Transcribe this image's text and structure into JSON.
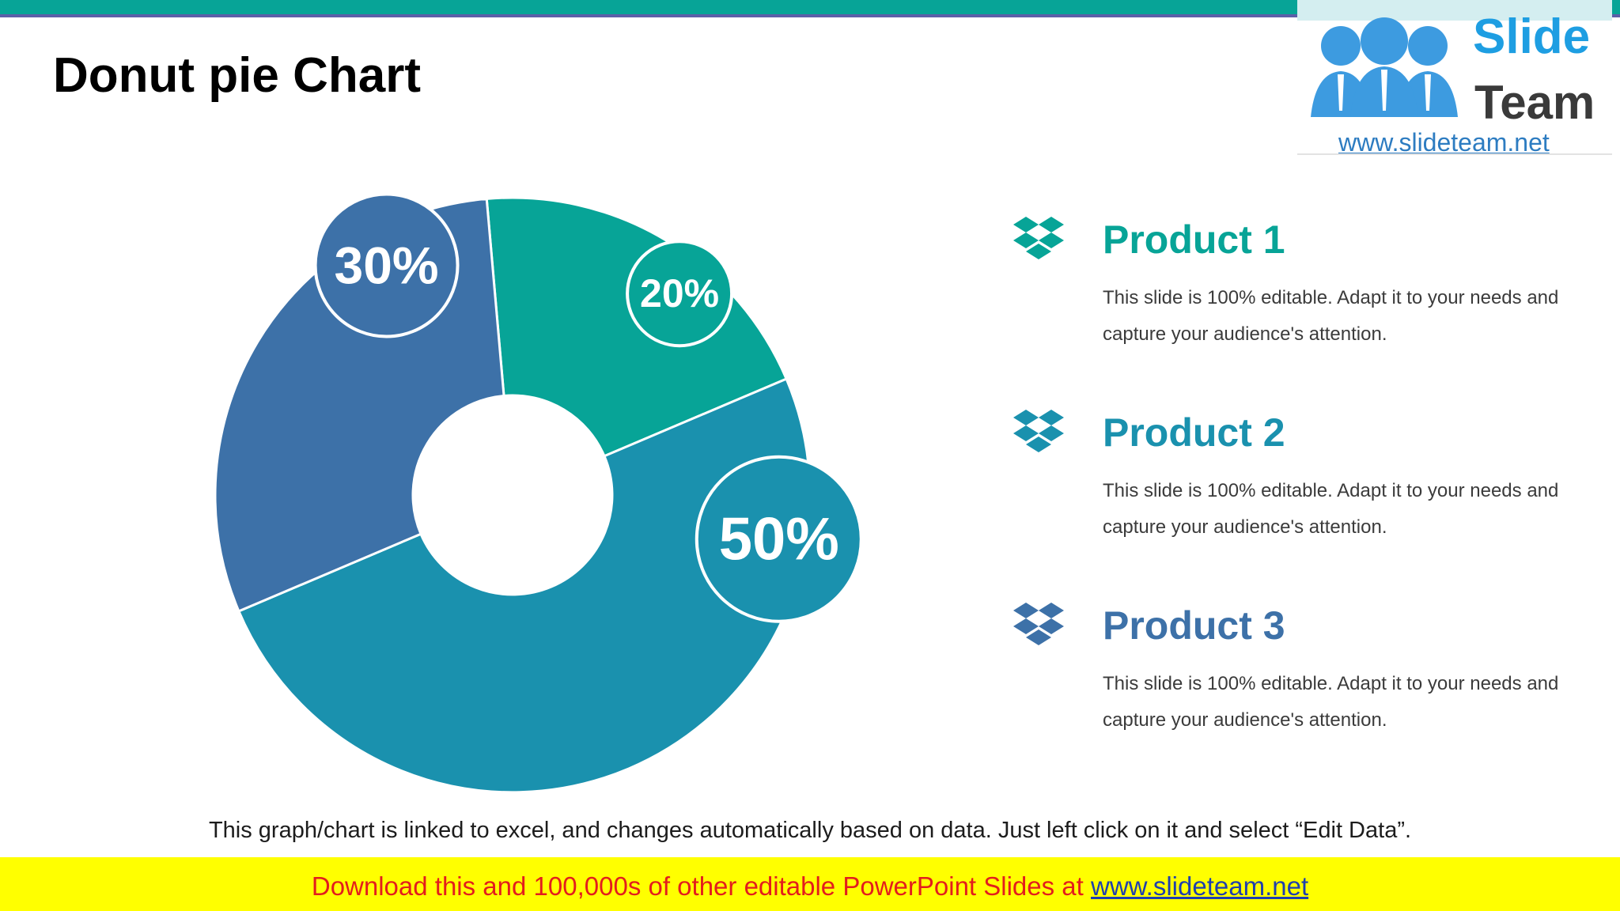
{
  "title": "Donut pie Chart",
  "logo": {
    "slide": "Slide",
    "team": "Team",
    "url": "www.slideteam.net"
  },
  "colors": {
    "teal": "#07a497",
    "blue_teal": "#1a91ae",
    "steel_blue": "#3d71a8"
  },
  "chart_data": {
    "type": "pie",
    "style": "donut",
    "categories": [
      "Product 1",
      "Product 2",
      "Product 3"
    ],
    "values": [
      20,
      50,
      30
    ],
    "labels": [
      "20%",
      "50%",
      "30%"
    ],
    "colors": [
      "#07a497",
      "#1a91ae",
      "#3d71a8"
    ],
    "legend": "right"
  },
  "legend": [
    {
      "title": "Product 1",
      "desc": "This slide is 100% editable. Adapt it to your needs and capture your audience's attention.",
      "icon": "dropbox-icon"
    },
    {
      "title": "Product 2",
      "desc": "This slide is 100% editable. Adapt it to your needs and capture your audience's attention.",
      "icon": "dropbox-icon"
    },
    {
      "title": "Product 3",
      "desc": "This slide is 100% editable. Adapt it to your needs and capture your audience's attention.",
      "icon": "dropbox-icon"
    }
  ],
  "footnote": "This graph/chart is linked to excel, and changes automatically based on data. Just left click on it and select “Edit Data”.",
  "banner": {
    "text": "Download this and 100,000s of other editable PowerPoint Slides at ",
    "link": "www.slideteam.net"
  }
}
